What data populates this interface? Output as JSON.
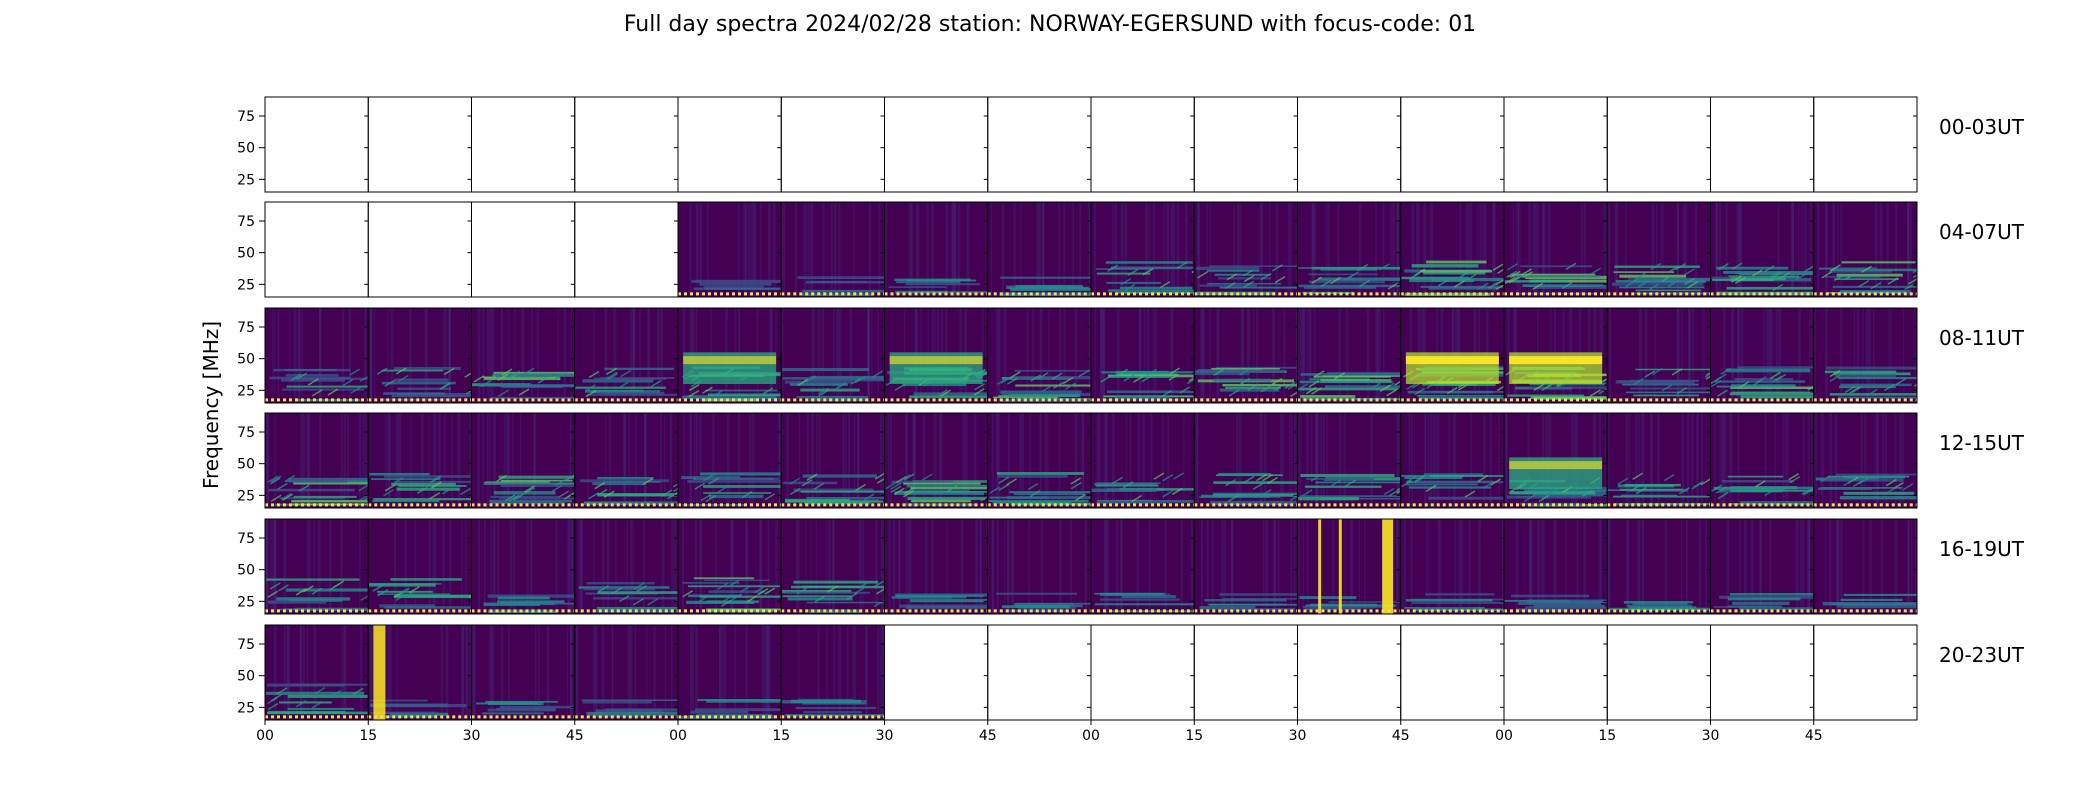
{
  "chart_data": {
    "type": "heatmap",
    "title": "Full day spectra 2024/02/28 station: NORWAY-EGERSUND with focus-code: 01",
    "ylabel": "Frequency [MHz]",
    "yticks": [
      "75",
      "50",
      "25"
    ],
    "ytick_values": [
      75,
      50,
      25
    ],
    "ylim": [
      15,
      90
    ],
    "xticks": [
      "00",
      "15",
      "30",
      "45",
      "00",
      "15",
      "30",
      "45",
      "00",
      "15",
      "30",
      "45",
      "00",
      "15",
      "30",
      "45"
    ],
    "colormap": "viridis",
    "colors": {
      "low": "#440154",
      "mid": "#21918c",
      "high": "#fde725",
      "background_marker": "#f1e44b"
    },
    "rows": [
      {
        "label": "00-03UT",
        "panels": [
          "empty",
          "empty",
          "empty",
          "empty",
          "empty",
          "empty",
          "empty",
          "empty",
          "empty",
          "empty",
          "empty",
          "empty",
          "empty",
          "empty",
          "empty",
          "empty"
        ]
      },
      {
        "label": "04-07UT",
        "panels": [
          "empty",
          "empty",
          "empty",
          "empty",
          "quiet",
          "quiet",
          "weak",
          "weak",
          "moderate",
          "moderate",
          "moderate",
          "active",
          "active",
          "active",
          "active",
          "active"
        ]
      },
      {
        "label": "08-11UT",
        "panels": [
          "moderate",
          "moderate",
          "active",
          "moderate",
          "burst",
          "moderate",
          "burst",
          "active",
          "active",
          "active",
          "active",
          "strong-burst",
          "strong-burst",
          "moderate",
          "active",
          "moderate"
        ]
      },
      {
        "label": "12-15UT",
        "panels": [
          "active",
          "moderate",
          "active",
          "moderate",
          "moderate",
          "moderate",
          "active",
          "moderate",
          "moderate",
          "moderate",
          "moderate",
          "moderate",
          "burst",
          "moderate",
          "moderate",
          "moderate"
        ]
      },
      {
        "label": "16-19UT",
        "panels": [
          "moderate",
          "moderate",
          "weak",
          "moderate",
          "active",
          "moderate",
          "weak",
          "weak",
          "weak",
          "weak",
          "spikes",
          "weak",
          "weak",
          "weak",
          "weak",
          "weak"
        ]
      },
      {
        "label": "20-23UT",
        "panels": [
          "moderate",
          "spike",
          "weak",
          "weak",
          "weak",
          "weak",
          "empty",
          "empty",
          "empty",
          "empty",
          "empty",
          "empty",
          "empty",
          "empty",
          "empty",
          "empty"
        ]
      }
    ]
  }
}
